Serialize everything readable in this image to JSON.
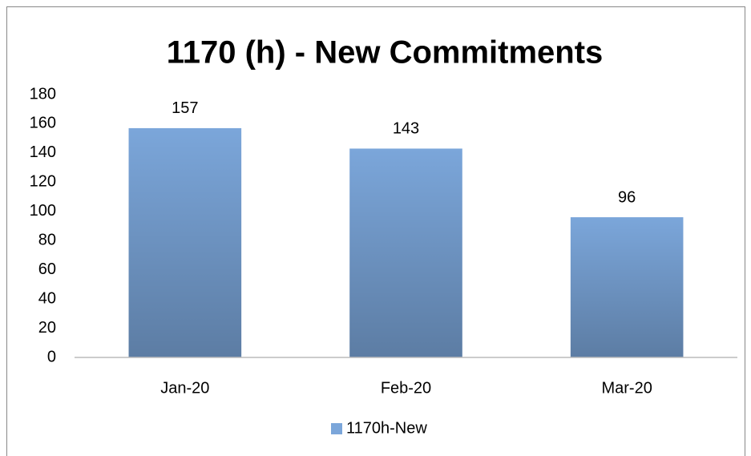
{
  "chart_data": {
    "type": "bar",
    "title": "1170 (h) - New Commitments",
    "categories": [
      "Jan-20",
      "Feb-20",
      "Mar-20"
    ],
    "series": [
      {
        "name": "1170h-New",
        "color": "#7ba6da",
        "values": [
          157,
          143,
          96
        ]
      }
    ],
    "ylim": [
      0,
      180
    ],
    "yticks": [
      0,
      20,
      40,
      60,
      80,
      100,
      120,
      140,
      160,
      180
    ],
    "grid": false,
    "legend": "bottom"
  }
}
